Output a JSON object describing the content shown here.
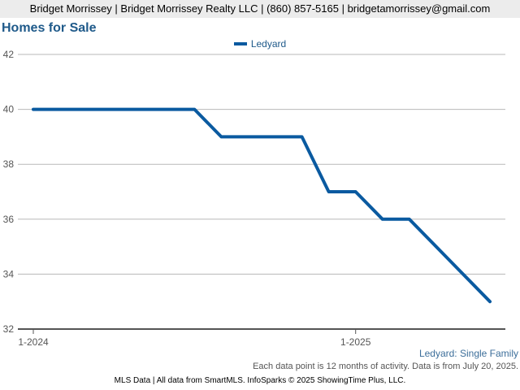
{
  "header": {
    "contact": "Bridget Morrissey | Bridget Morrissey Realty LLC | (860) 857-5165 | bridgetamorrissey@gmail.com"
  },
  "chart_data": {
    "type": "line",
    "title": "Homes for Sale",
    "xlabel": "",
    "ylabel": "",
    "x": [
      "2024-01",
      "2024-02",
      "2024-03",
      "2024-04",
      "2024-05",
      "2024-06",
      "2024-07",
      "2024-08",
      "2024-09",
      "2024-10",
      "2024-11",
      "2024-12",
      "2025-01",
      "2025-02",
      "2025-03",
      "2025-04",
      "2025-05",
      "2025-06"
    ],
    "x_tick_labels": [
      {
        "x": "2024-01",
        "label": "1-2024"
      },
      {
        "x": "2025-01",
        "label": "1-2025"
      }
    ],
    "series": [
      {
        "name": "Ledyard",
        "color": "#0a5aa0",
        "values": [
          40,
          40,
          40,
          40,
          40,
          40,
          40,
          39,
          39,
          39,
          39,
          37,
          37,
          36,
          36,
          35,
          34,
          33
        ]
      }
    ],
    "ylim": [
      32,
      42
    ],
    "y_ticks": [
      32,
      34,
      36,
      38,
      40,
      42
    ],
    "grid": true,
    "legend": "top-center"
  },
  "chart_subtitle": "Ledyard: Single Family",
  "note": "Each data point is 12 months of activity. Data is from July 20, 2025.",
  "footer": "MLS Data | All data from SmartMLS. InfoSparks © 2025 ShowingTime Plus, LLC."
}
